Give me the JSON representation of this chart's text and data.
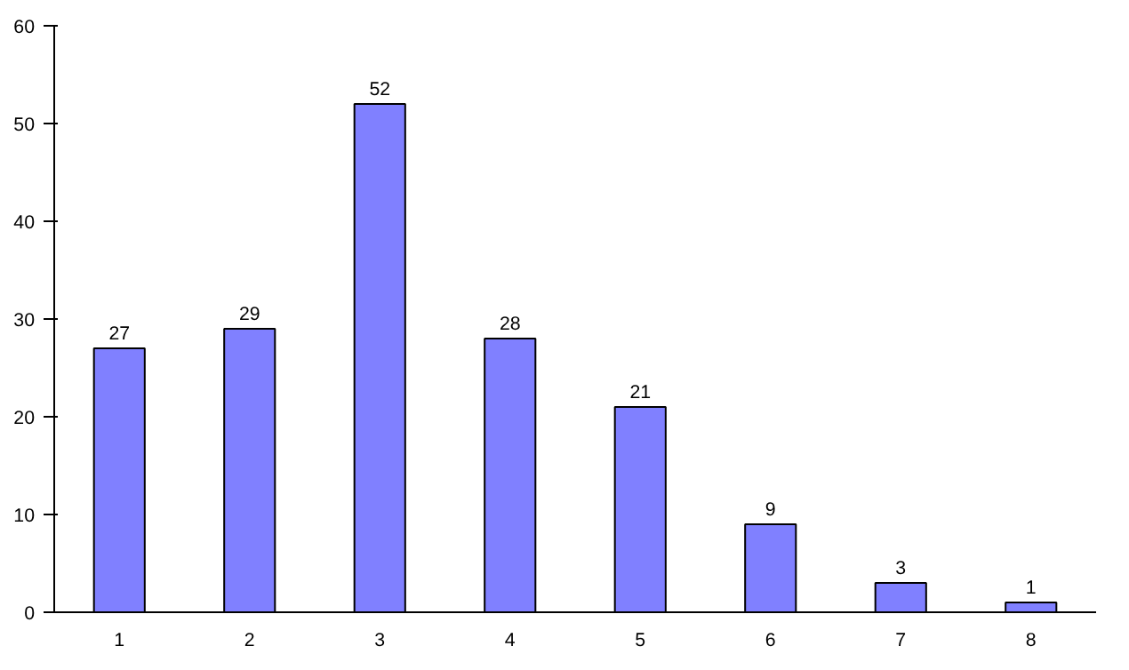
{
  "chart_data": {
    "type": "bar",
    "categories": [
      "1",
      "2",
      "3",
      "4",
      "5",
      "6",
      "7",
      "8"
    ],
    "values": [
      27,
      29,
      52,
      28,
      21,
      9,
      3,
      1
    ],
    "color": "#8080ff",
    "ylim": [
      0,
      60
    ],
    "yticks": [
      0,
      10,
      20,
      30,
      40,
      50,
      60
    ],
    "data_labels": true
  }
}
